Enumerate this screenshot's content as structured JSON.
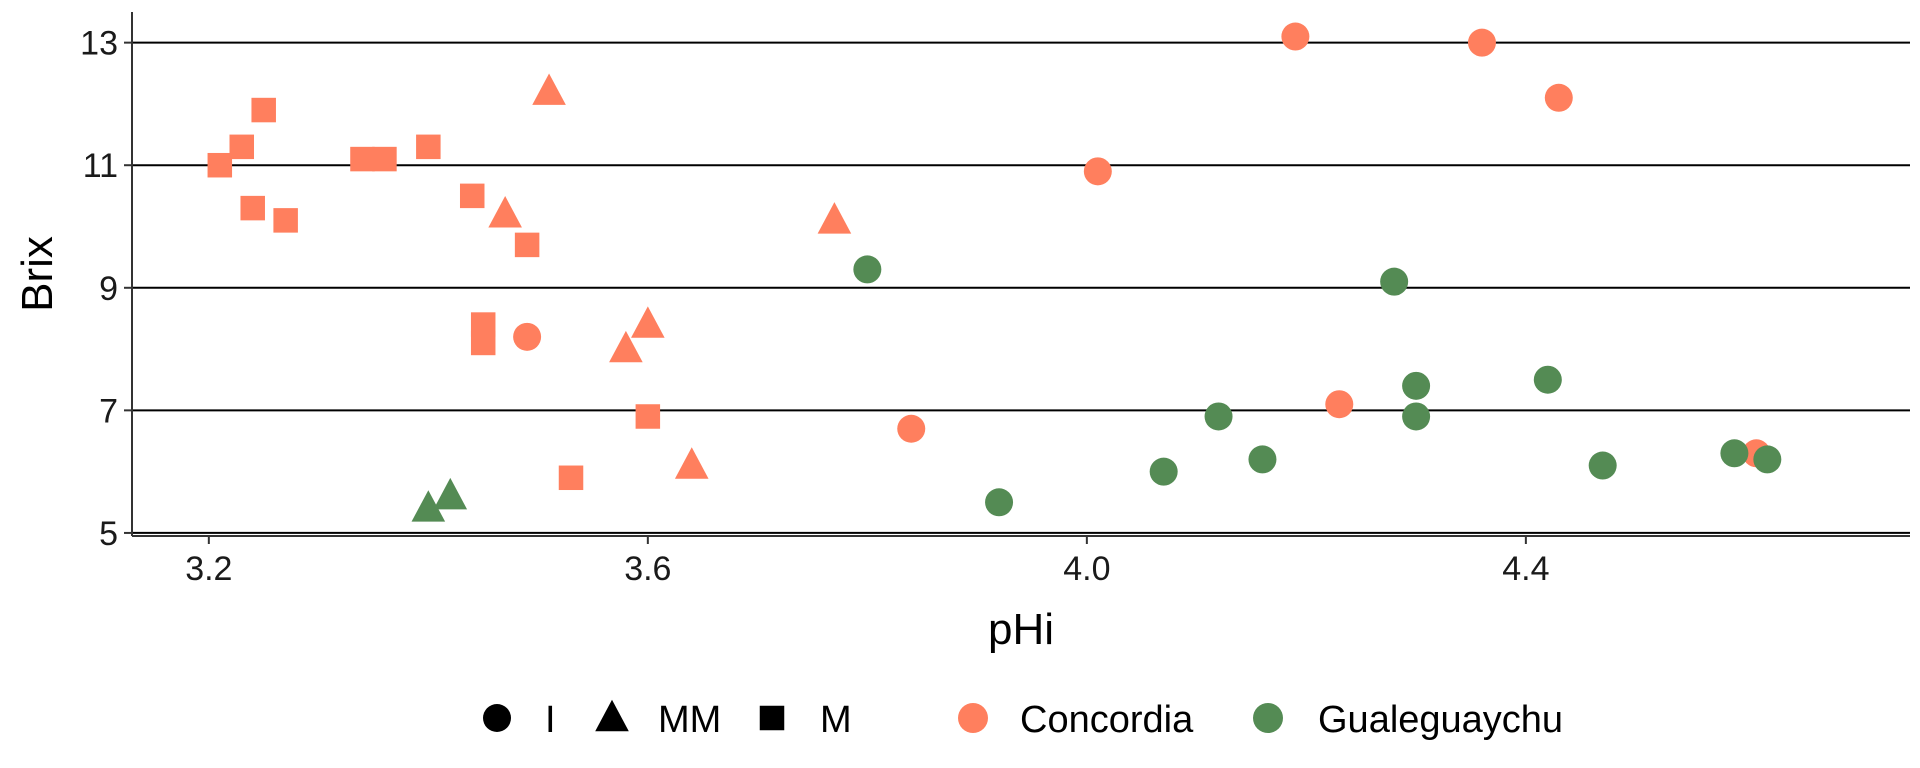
{
  "chart_data": {
    "type": "scatter",
    "title": "",
    "xlabel": "pHi",
    "ylabel": "Brix",
    "xlim": [
      3.13,
      4.75
    ],
    "ylim": [
      4.95,
      13.5
    ],
    "xticks": [
      "3.2",
      "3.6",
      "4.0",
      "4.4"
    ],
    "xtick_values": [
      3.2,
      3.6,
      4.0,
      4.4
    ],
    "yticks": [
      "5",
      "7",
      "9",
      "11",
      "13"
    ],
    "ytick_values": [
      5,
      7,
      9,
      11,
      13
    ],
    "grid": "horizontal major lines",
    "legend_position": "bottom",
    "colors": {
      "Concordia": "#FF7F5E",
      "Gualeguaychu": "#548B54"
    },
    "shape_legend": [
      {
        "label": "I",
        "shape": "circle"
      },
      {
        "label": "MM",
        "shape": "triangle"
      },
      {
        "label": "M",
        "shape": "square"
      }
    ],
    "color_legend": [
      {
        "label": "Concordia",
        "color": "#FF7F5E"
      },
      {
        "label": "Gualeguaychu",
        "color": "#548B54"
      }
    ],
    "series": [
      {
        "name": "Concordia",
        "points": [
          {
            "x": 3.21,
            "y": 11.0,
            "shape": "square"
          },
          {
            "x": 3.23,
            "y": 11.3,
            "shape": "square"
          },
          {
            "x": 3.24,
            "y": 10.3,
            "shape": "square"
          },
          {
            "x": 3.25,
            "y": 11.9,
            "shape": "square"
          },
          {
            "x": 3.27,
            "y": 10.1,
            "shape": "square"
          },
          {
            "x": 3.34,
            "y": 11.1,
            "shape": "square"
          },
          {
            "x": 3.36,
            "y": 11.1,
            "shape": "square"
          },
          {
            "x": 3.4,
            "y": 11.3,
            "shape": "square"
          },
          {
            "x": 3.44,
            "y": 10.5,
            "shape": "square"
          },
          {
            "x": 3.45,
            "y": 8.4,
            "shape": "square"
          },
          {
            "x": 3.45,
            "y": 8.1,
            "shape": "square"
          },
          {
            "x": 3.49,
            "y": 9.7,
            "shape": "square"
          },
          {
            "x": 3.53,
            "y": 5.9,
            "shape": "square"
          },
          {
            "x": 3.6,
            "y": 6.9,
            "shape": "square"
          },
          {
            "x": 3.47,
            "y": 10.2,
            "shape": "triangle"
          },
          {
            "x": 3.51,
            "y": 12.2,
            "shape": "triangle"
          },
          {
            "x": 3.58,
            "y": 8.0,
            "shape": "triangle"
          },
          {
            "x": 3.6,
            "y": 8.4,
            "shape": "triangle"
          },
          {
            "x": 3.64,
            "y": 6.1,
            "shape": "triangle"
          },
          {
            "x": 3.77,
            "y": 10.1,
            "shape": "triangle"
          },
          {
            "x": 3.49,
            "y": 8.2,
            "shape": "circle"
          },
          {
            "x": 3.84,
            "y": 6.7,
            "shape": "circle"
          },
          {
            "x": 4.01,
            "y": 10.9,
            "shape": "circle"
          },
          {
            "x": 4.19,
            "y": 13.1,
            "shape": "circle"
          },
          {
            "x": 4.36,
            "y": 13.0,
            "shape": "circle"
          },
          {
            "x": 4.43,
            "y": 12.1,
            "shape": "circle"
          },
          {
            "x": 4.23,
            "y": 7.1,
            "shape": "circle"
          },
          {
            "x": 4.61,
            "y": 6.3,
            "shape": "circle"
          }
        ]
      },
      {
        "name": "Gualeguaychu",
        "points": [
          {
            "x": 3.4,
            "y": 5.4,
            "shape": "triangle"
          },
          {
            "x": 3.42,
            "y": 5.6,
            "shape": "triangle"
          },
          {
            "x": 3.8,
            "y": 9.3,
            "shape": "circle"
          },
          {
            "x": 3.92,
            "y": 5.5,
            "shape": "circle"
          },
          {
            "x": 4.07,
            "y": 6.0,
            "shape": "circle"
          },
          {
            "x": 4.12,
            "y": 6.9,
            "shape": "circle"
          },
          {
            "x": 4.16,
            "y": 6.2,
            "shape": "circle"
          },
          {
            "x": 4.28,
            "y": 9.1,
            "shape": "circle"
          },
          {
            "x": 4.3,
            "y": 7.4,
            "shape": "circle"
          },
          {
            "x": 4.3,
            "y": 6.9,
            "shape": "circle"
          },
          {
            "x": 4.42,
            "y": 7.5,
            "shape": "circle"
          },
          {
            "x": 4.47,
            "y": 6.1,
            "shape": "circle"
          },
          {
            "x": 4.59,
            "y": 6.3,
            "shape": "circle"
          },
          {
            "x": 4.62,
            "y": 6.2,
            "shape": "circle"
          }
        ]
      }
    ]
  }
}
